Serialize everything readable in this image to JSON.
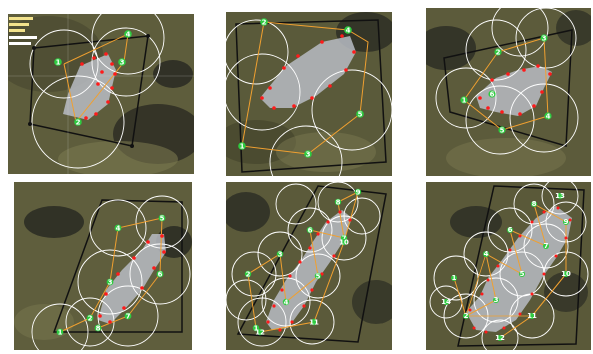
{
  "figure": {
    "colors": {
      "terrain_dark": "#3c3a24",
      "terrain_mid": "#6b6a44",
      "terrain_light": "#8a875d",
      "shadow": "#22231d",
      "target_fill": "#b9bcc4",
      "frame": "#111111",
      "circle": "#ffffff",
      "route": "#f0a030",
      "waypoint": "#2ecc40",
      "boundary_point": "#ff1a1a"
    },
    "panels": [
      {
        "id": "panel-1",
        "waypoint_labels": [
          "1",
          "2",
          "3",
          "4"
        ],
        "legend_text": [
          "",
          "",
          ""
        ]
      },
      {
        "id": "panel-2",
        "waypoint_labels": [
          "1",
          "2",
          "3",
          "4",
          "5"
        ]
      },
      {
        "id": "panel-3",
        "waypoint_labels": [
          "1",
          "2",
          "3",
          "4",
          "5",
          "6"
        ]
      },
      {
        "id": "panel-4",
        "waypoint_labels": [
          "1",
          "2",
          "3",
          "4",
          "5",
          "6",
          "7",
          "8"
        ]
      },
      {
        "id": "panel-5",
        "waypoint_labels": [
          "1",
          "2",
          "3",
          "4",
          "5",
          "6",
          "7",
          "8",
          "9",
          "10",
          "11",
          "12"
        ]
      },
      {
        "id": "panel-6",
        "waypoint_labels": [
          "1",
          "2",
          "3",
          "4",
          "5",
          "6",
          "7",
          "8",
          "9",
          "10",
          "11",
          "12",
          "13",
          "14"
        ]
      }
    ]
  }
}
